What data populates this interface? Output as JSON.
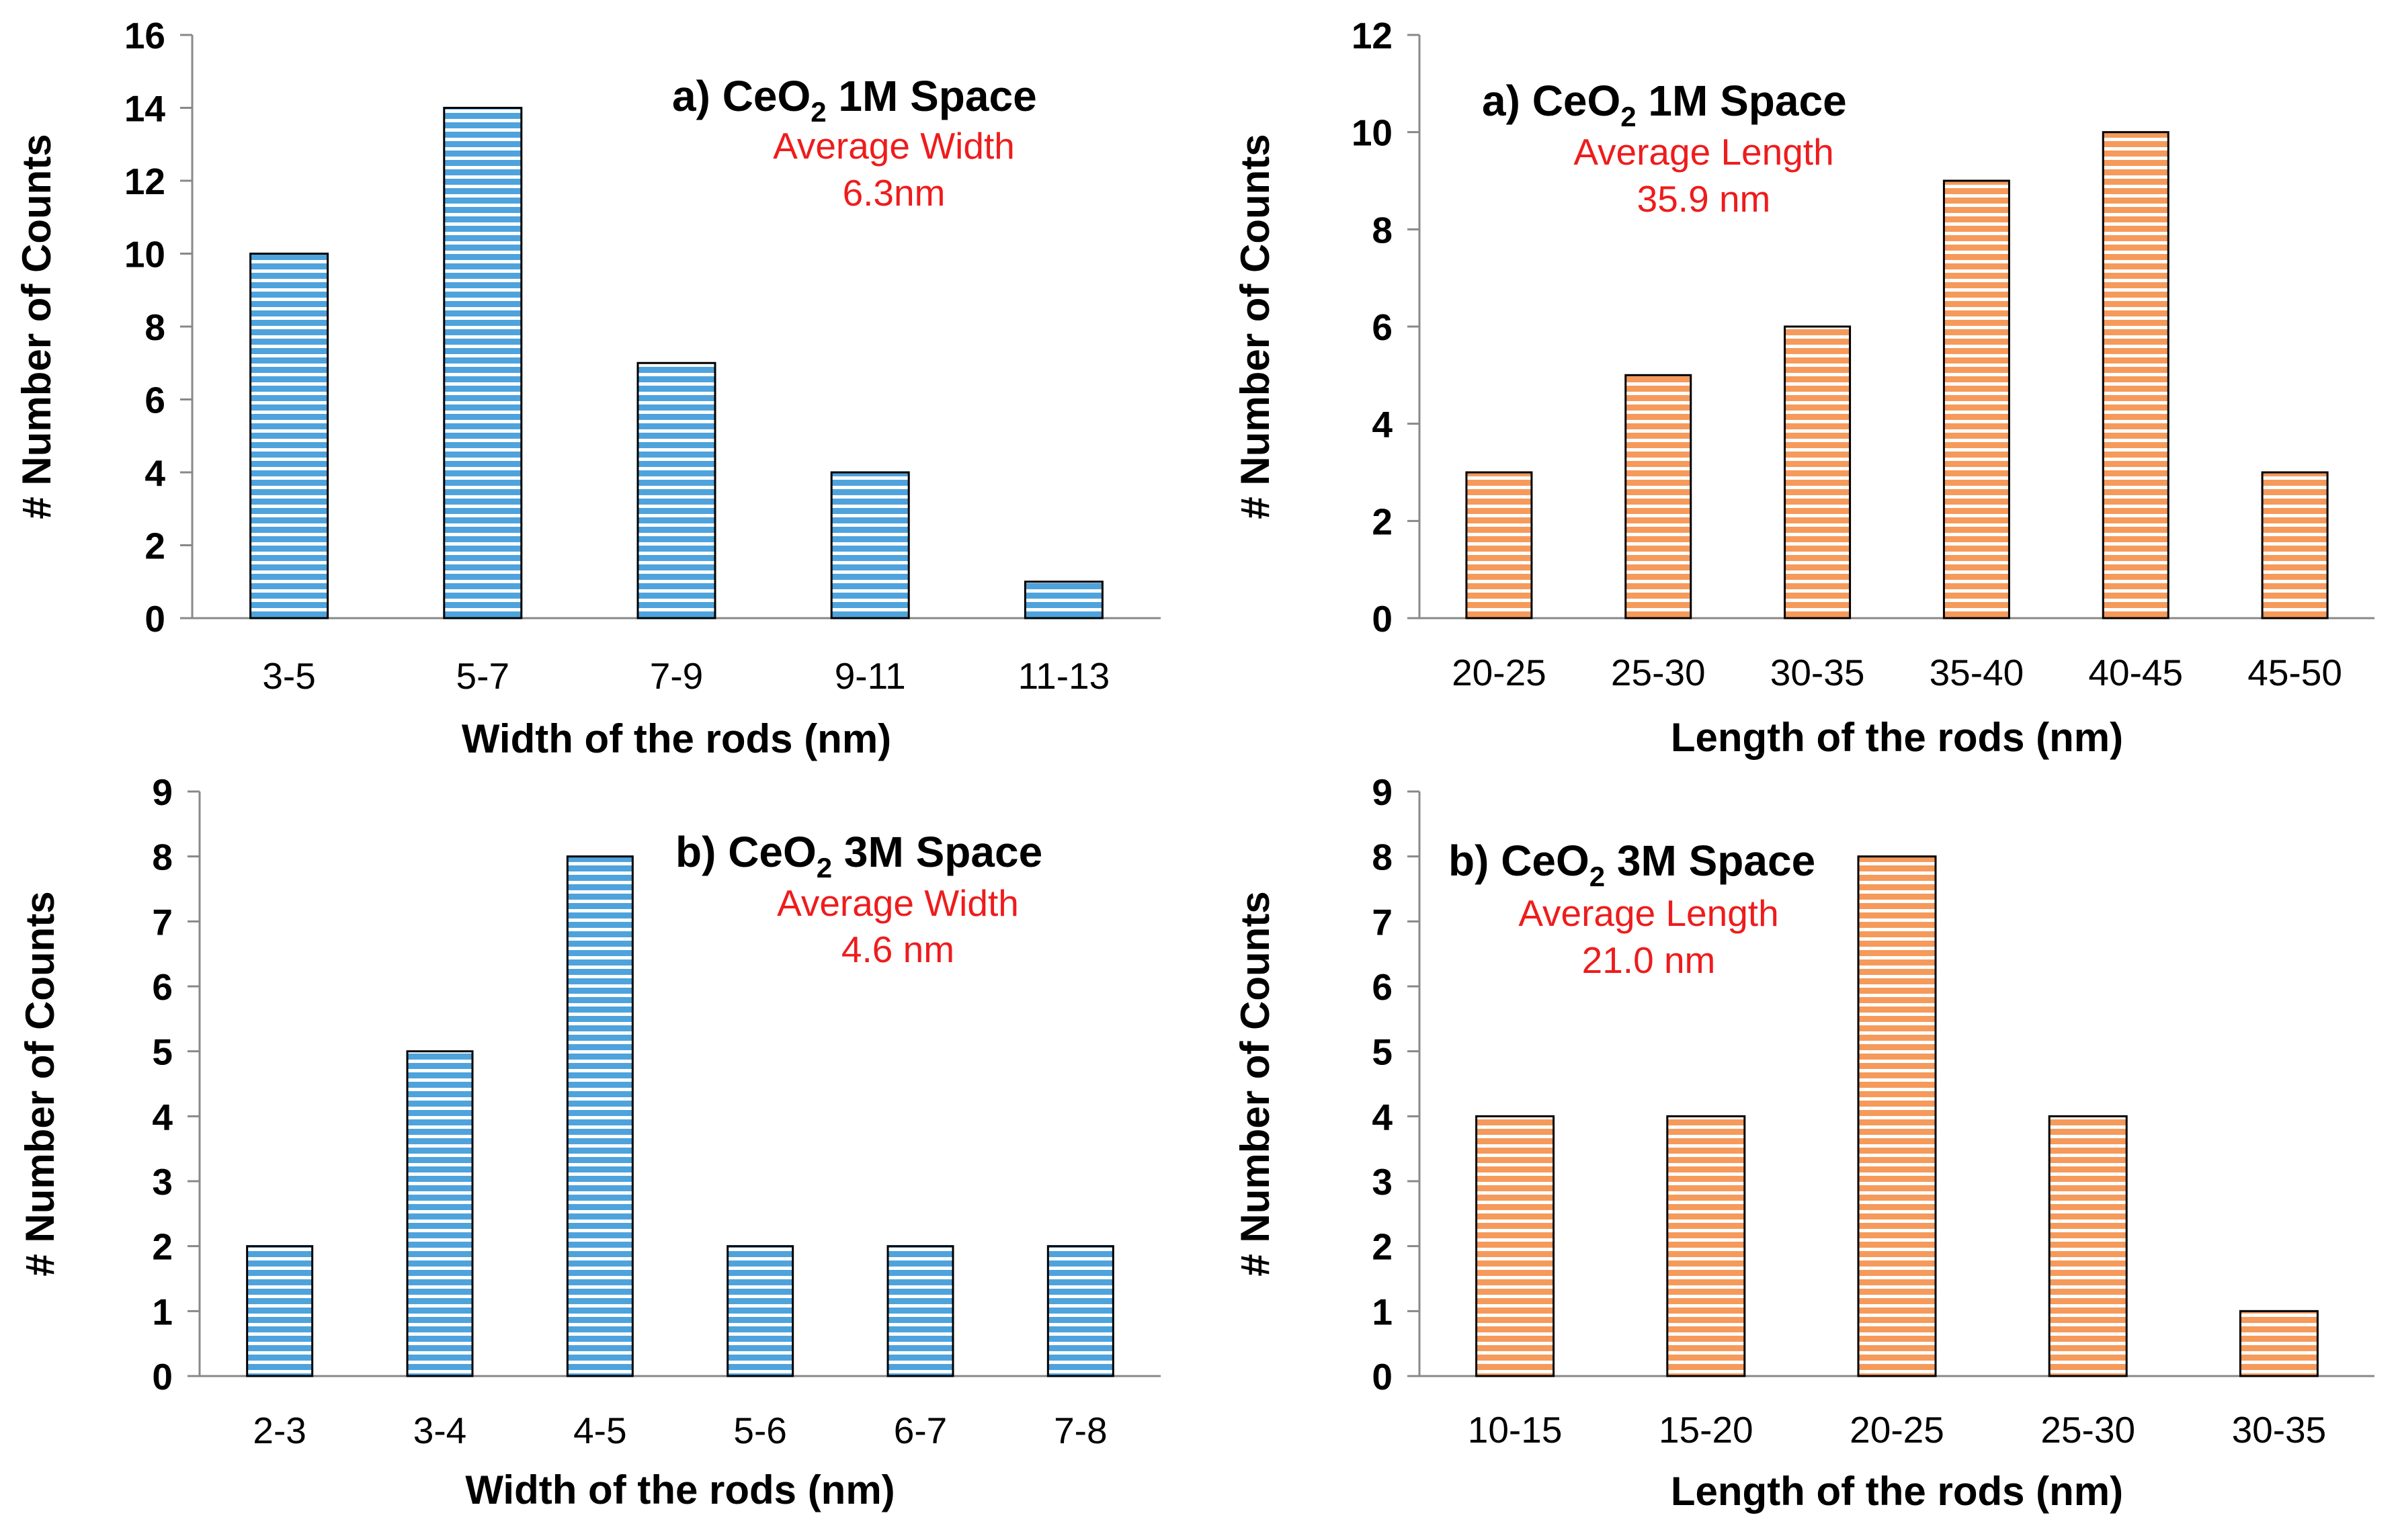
{
  "colors": {
    "blue": "#4ea3dd",
    "orange": "#f59a5b",
    "stripe": "#ffffff",
    "annotation": "#ee1c1c"
  },
  "chart_data": [
    {
      "type": "bar",
      "panel": "top-left",
      "bar_color": "blue",
      "title": {
        "prefix": "a)",
        "compound_main": "CeO",
        "compound_sub": "2",
        "suffix": "1M Space"
      },
      "annotation": [
        "Average Width",
        "6.3nm"
      ],
      "categories": [
        "3-5",
        "5-7",
        "7-9",
        "9-11",
        "11-13"
      ],
      "values": [
        10,
        14,
        7,
        4,
        1
      ],
      "xlabel": "Width of the rods (nm)",
      "ylabel": "# Number of Counts",
      "ylim": [
        0,
        16
      ],
      "yticks": [
        "0",
        "2",
        "4",
        "6",
        "8",
        "10",
        "12",
        "14",
        "16"
      ]
    },
    {
      "type": "bar",
      "panel": "top-right",
      "bar_color": "orange",
      "title": {
        "prefix": "a)",
        "compound_main": "CeO",
        "compound_sub": "2",
        "suffix": "1M Space"
      },
      "annotation": [
        "Average Length",
        "35.9 nm"
      ],
      "categories": [
        "20-25",
        "25-30",
        "30-35",
        "35-40",
        "40-45",
        "45-50"
      ],
      "values": [
        3,
        5,
        6,
        9,
        10,
        3
      ],
      "xlabel": "Length of the rods (nm)",
      "ylabel": "# Number of Counts",
      "ylim": [
        0,
        12
      ],
      "yticks": [
        "0",
        "2",
        "4",
        "6",
        "8",
        "10",
        "12"
      ]
    },
    {
      "type": "bar",
      "panel": "bottom-left",
      "bar_color": "blue",
      "title": {
        "prefix": "b)",
        "compound_main": "CeO",
        "compound_sub": "2",
        "suffix": "3M Space"
      },
      "annotation": [
        "Average Width",
        "4.6 nm"
      ],
      "categories": [
        "2-3",
        "3-4",
        "4-5",
        "5-6",
        "6-7",
        "7-8"
      ],
      "values": [
        2,
        5,
        8,
        2,
        2,
        2
      ],
      "xlabel": "Width of the rods (nm)",
      "ylabel": "# Number of Counts",
      "ylim": [
        0,
        9
      ],
      "yticks": [
        "0",
        "1",
        "2",
        "3",
        "4",
        "5",
        "6",
        "7",
        "8",
        "9"
      ]
    },
    {
      "type": "bar",
      "panel": "bottom-right",
      "bar_color": "orange",
      "title": {
        "prefix": "b)",
        "compound_main": "CeO",
        "compound_sub": "2",
        "suffix": "3M Space"
      },
      "annotation": [
        "Average Length",
        "21.0 nm"
      ],
      "categories": [
        "10-15",
        "15-20",
        "20-25",
        "25-30",
        "30-35"
      ],
      "values": [
        4,
        4,
        8,
        4,
        1
      ],
      "xlabel": "Length of the rods (nm)",
      "ylabel": "# Number of Counts",
      "ylim": [
        0,
        9
      ],
      "yticks": [
        "0",
        "1",
        "2",
        "3",
        "4",
        "5",
        "6",
        "7",
        "8",
        "9"
      ]
    }
  ]
}
